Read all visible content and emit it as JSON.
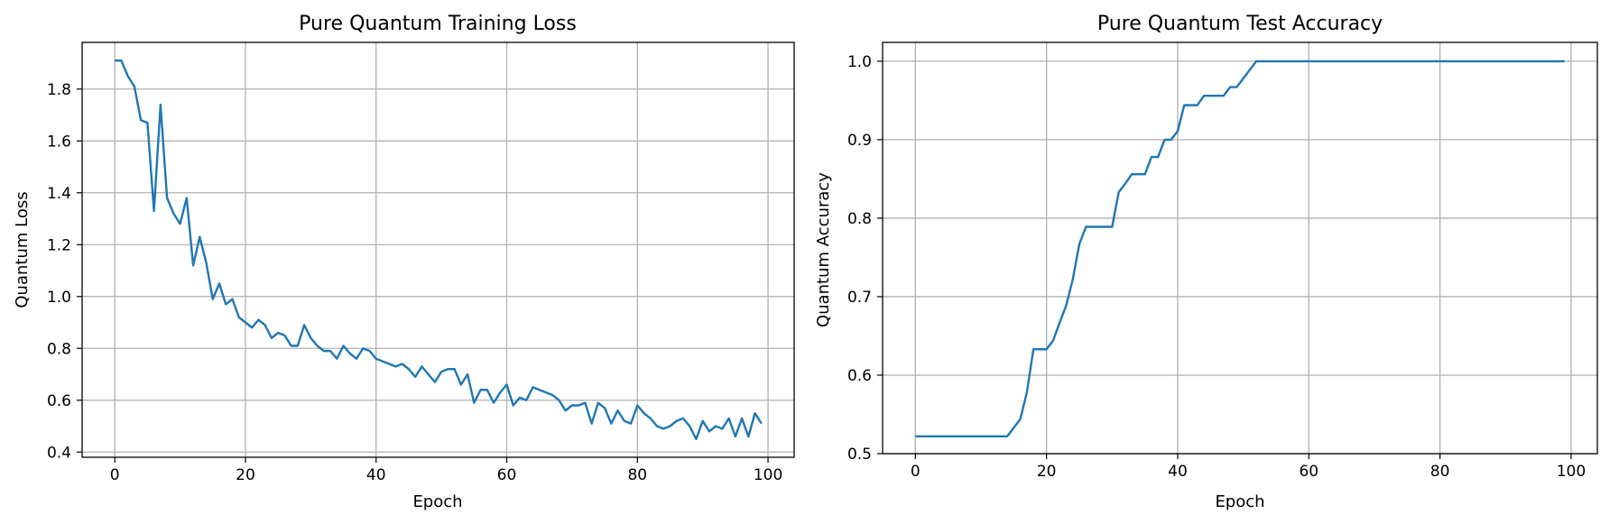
{
  "chart_data": [
    {
      "type": "line",
      "title": "Pure Quantum Training Loss",
      "xlabel": "Epoch",
      "ylabel": "Quantum Loss",
      "xlim": [
        -5,
        104
      ],
      "ylim": [
        0.38,
        1.98
      ],
      "xticks": [
        0,
        20,
        40,
        60,
        80,
        100
      ],
      "yticks": [
        0.4,
        0.6,
        0.8,
        1.0,
        1.2,
        1.4,
        1.6,
        1.8
      ],
      "ytick_labels": [
        "0.4",
        "0.6",
        "0.8",
        "1.0",
        "1.2",
        "1.4",
        "1.6",
        "1.8"
      ],
      "grid": true,
      "color": "#1f77b4",
      "series": [
        {
          "values": [
            1.91,
            1.91,
            1.85,
            1.81,
            1.68,
            1.67,
            1.33,
            1.74,
            1.38,
            1.32,
            1.28,
            1.38,
            1.12,
            1.23,
            1.13,
            0.99,
            1.05,
            0.97,
            0.99,
            0.92,
            0.9,
            0.88,
            0.91,
            0.89,
            0.84,
            0.86,
            0.85,
            0.81,
            0.81,
            0.89,
            0.84,
            0.81,
            0.79,
            0.79,
            0.76,
            0.81,
            0.78,
            0.76,
            0.8,
            0.79,
            0.76,
            0.75,
            0.74,
            0.73,
            0.74,
            0.72,
            0.69,
            0.73,
            0.7,
            0.67,
            0.71,
            0.72,
            0.72,
            0.66,
            0.7,
            0.59,
            0.64,
            0.64,
            0.59,
            0.63,
            0.66,
            0.58,
            0.61,
            0.6,
            0.65,
            0.64,
            0.63,
            0.62,
            0.6,
            0.56,
            0.58,
            0.58,
            0.59,
            0.51,
            0.59,
            0.57,
            0.51,
            0.56,
            0.52,
            0.51,
            0.58,
            0.55,
            0.53,
            0.5,
            0.49,
            0.5,
            0.52,
            0.53,
            0.5,
            0.45,
            0.52,
            0.48,
            0.5,
            0.49,
            0.53,
            0.46,
            0.53,
            0.46,
            0.55,
            0.51
          ]
        }
      ]
    },
    {
      "type": "line",
      "title": "Pure Quantum Test Accuracy",
      "xlabel": "Epoch",
      "ylabel": "Quantum Accuracy",
      "xlim": [
        -5,
        104
      ],
      "ylim": [
        0.5,
        1.024
      ],
      "xticks": [
        0,
        20,
        40,
        60,
        80,
        100
      ],
      "yticks": [
        0.5,
        0.6,
        0.7,
        0.8,
        0.9,
        1.0
      ],
      "ytick_labels": [
        "0.5",
        "0.6",
        "0.7",
        "0.8",
        "0.9",
        "1.0"
      ],
      "grid": true,
      "color": "#1f77b4",
      "series": [
        {
          "values": [
            0.522,
            0.522,
            0.522,
            0.522,
            0.522,
            0.522,
            0.522,
            0.522,
            0.522,
            0.522,
            0.522,
            0.522,
            0.522,
            0.522,
            0.522,
            0.533,
            0.544,
            0.578,
            0.633,
            0.633,
            0.633,
            0.644,
            0.667,
            0.689,
            0.722,
            0.767,
            0.789,
            0.789,
            0.789,
            0.789,
            0.789,
            0.833,
            0.844,
            0.856,
            0.856,
            0.856,
            0.878,
            0.878,
            0.9,
            0.9,
            0.911,
            0.944,
            0.944,
            0.944,
            0.956,
            0.956,
            0.956,
            0.956,
            0.967,
            0.967,
            0.978,
            0.989,
            1.0,
            1.0,
            1.0,
            1.0,
            1.0,
            1.0,
            1.0,
            1.0,
            1.0,
            1.0,
            1.0,
            1.0,
            1.0,
            1.0,
            1.0,
            1.0,
            1.0,
            1.0,
            1.0,
            1.0,
            1.0,
            1.0,
            1.0,
            1.0,
            1.0,
            1.0,
            1.0,
            1.0,
            1.0,
            1.0,
            1.0,
            1.0,
            1.0,
            1.0,
            1.0,
            1.0,
            1.0,
            1.0,
            1.0,
            1.0,
            1.0,
            1.0,
            1.0,
            1.0,
            1.0,
            1.0,
            1.0,
            1.0
          ]
        }
      ]
    }
  ]
}
